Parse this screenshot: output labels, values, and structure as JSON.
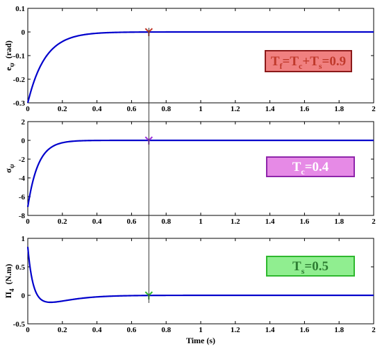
{
  "chart_data": [
    {
      "type": "line",
      "ylabel": "e_ψ (rad)",
      "ylabel_main": "e",
      "ylabel_sub": "ψ",
      "ylabel_unit": "(rad)",
      "xlim": [
        0,
        2
      ],
      "ylim": [
        -0.3,
        0.1
      ],
      "yticks": [
        0.1,
        0,
        -0.1,
        -0.2,
        -0.3
      ],
      "xticks": [
        0,
        0.2,
        0.4,
        0.6,
        0.8,
        1,
        1.2,
        1.4,
        1.6,
        1.8,
        2
      ],
      "series_color": "#0000cc",
      "marker_color": "#c0392b",
      "annotation": {
        "parts": [
          {
            "t": "T"
          },
          {
            "t": "f",
            "sub": true
          },
          {
            "t": "=T"
          },
          {
            "t": "c",
            "sub": true
          },
          {
            "t": "+T"
          },
          {
            "t": "s",
            "sub": true
          },
          {
            "t": "=0.9"
          }
        ],
        "text_color": "#c0392b",
        "border_color": "#8b1a1a",
        "bg_color": "#f08080"
      },
      "curve": {
        "kind": "exp_decay",
        "y0": -0.3,
        "tau": 0.1
      },
      "marker": {
        "x": 0.7,
        "y": 0
      }
    },
    {
      "type": "line",
      "ylabel": "σ_ψ",
      "ylabel_main": "σ",
      "ylabel_sub": "ψ",
      "ylabel_unit": "",
      "xlim": [
        0,
        2
      ],
      "ylim": [
        -8,
        2
      ],
      "yticks": [
        2,
        0,
        -2,
        -4,
        -6,
        -8
      ],
      "xticks": [
        0,
        0.2,
        0.4,
        0.6,
        0.8,
        1,
        1.2,
        1.4,
        1.6,
        1.8,
        2
      ],
      "series_color": "#0000cc",
      "marker_color": "#9b30d9",
      "annotation": {
        "parts": [
          {
            "t": "T"
          },
          {
            "t": "c",
            "sub": true
          },
          {
            "t": "=0.4"
          }
        ],
        "text_color": "#ffffff",
        "border_color": "#8e24aa",
        "bg_color": "#e68ae6"
      },
      "curve": {
        "kind": "exp_decay",
        "y0": -7.1,
        "tau": 0.06
      },
      "marker": {
        "x": 0.7,
        "y": 0
      }
    },
    {
      "type": "line",
      "ylabel": "Π_4 (N.m)",
      "ylabel_main": "Π",
      "ylabel_sub": "4",
      "ylabel_unit": "(N.m)",
      "xlabel": "Time (s)",
      "xlim": [
        0,
        2
      ],
      "ylim": [
        -0.5,
        1
      ],
      "yticks": [
        1,
        0.5,
        0,
        -0.5
      ],
      "xticks": [
        0,
        0.2,
        0.4,
        0.6,
        0.8,
        1,
        1.2,
        1.4,
        1.6,
        1.8,
        2
      ],
      "series_color": "#0000cc",
      "marker_color": "#2eb82e",
      "annotation": {
        "parts": [
          {
            "t": "T"
          },
          {
            "t": "s",
            "sub": true
          },
          {
            "t": "=0.5"
          }
        ],
        "text_color": "#2e7d32",
        "border_color": "#2eb82e",
        "bg_color": "#90ee90"
      },
      "curve": {
        "kind": "overshoot",
        "y0": 0.85,
        "decay": 40,
        "dip": -0.12,
        "t_dip": 0.1
      },
      "marker": {
        "x": 0.7,
        "y": 0
      }
    }
  ]
}
